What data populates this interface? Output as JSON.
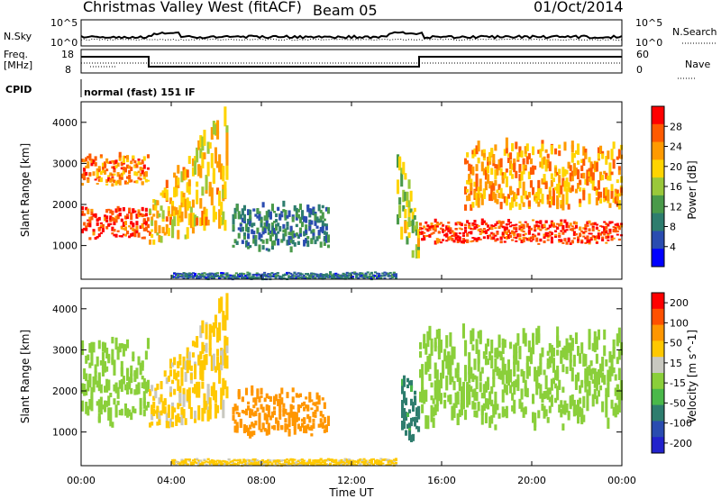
{
  "header": {
    "station": "Christmas Valley West (fitACF)",
    "beam": "Beam 05",
    "date": "01/Oct/2014"
  },
  "noise_panel": {
    "left_label": "N.Sky",
    "left_ticks": [
      "10^5",
      "10^0"
    ],
    "right_label": "N.Search",
    "right_ticks": [
      "10^5",
      "10^0"
    ]
  },
  "freq_panel": {
    "left_label_1": "Freq.",
    "left_label_2": "[MHz]",
    "left_ticks": [
      "18",
      "8"
    ],
    "right_label": "Nave",
    "right_ticks": [
      "60",
      "0"
    ]
  },
  "cpid_panel": {
    "label": "CPID",
    "text": "normal (fast) 151 IF"
  },
  "chart_data": [
    {
      "type": "heatmap",
      "title": "",
      "xlabel": "Time UT",
      "ylabel": "Slant Range [km]",
      "xlim": [
        0,
        24
      ],
      "ylim": [
        180,
        4500
      ],
      "x_ticks": [
        "00:00",
        "04:00",
        "08:00",
        "12:00",
        "16:00",
        "20:00",
        "00:00"
      ],
      "y_ticks": [
        1000,
        2000,
        3000,
        4000
      ],
      "colorbar": {
        "label": "Power [dB]",
        "ticks": [
          4,
          8,
          12,
          16,
          20,
          24,
          28
        ],
        "range": [
          0,
          30
        ]
      },
      "regions": [
        {
          "name": "early ionospheric band",
          "t": [
            0,
            3
          ],
          "range_km": [
            1100,
            1900
          ],
          "value": 28
        },
        {
          "name": "early upper band",
          "t": [
            0,
            3
          ],
          "range_km": [
            2400,
            3200
          ],
          "value": 24
        },
        {
          "name": "rising arcs",
          "t": [
            3,
            6.5
          ],
          "range_km": [
            1000,
            4200
          ],
          "value": 20
        },
        {
          "name": "daytime ground scatter",
          "t": [
            6.7,
            11
          ],
          "range_km": [
            800,
            2000
          ],
          "value": 8
        },
        {
          "name": "sunset band",
          "t": [
            14,
            15
          ],
          "range_km": [
            500,
            3000
          ],
          "value": 16
        },
        {
          "name": "evening lower band",
          "t": [
            15,
            24
          ],
          "range_km": [
            1000,
            1600
          ],
          "value": 28
        },
        {
          "name": "evening upper band",
          "t": [
            17,
            24
          ],
          "range_km": [
            1800,
            3400
          ],
          "value": 22
        },
        {
          "name": "near-range echoes",
          "t": [
            4,
            14
          ],
          "range_km": [
            180,
            350
          ],
          "value": 6
        }
      ]
    },
    {
      "type": "heatmap",
      "title": "",
      "xlabel": "Time UT",
      "ylabel": "Slant Range [km]",
      "xlim": [
        0,
        24
      ],
      "ylim": [
        180,
        4500
      ],
      "x_ticks": [
        "00:00",
        "04:00",
        "08:00",
        "12:00",
        "16:00",
        "20:00",
        "00:00"
      ],
      "y_ticks": [
        1000,
        2000,
        3000,
        4000
      ],
      "colorbar": {
        "label": "Velocity [m s^-1]",
        "ticks": [
          200,
          100,
          50,
          15,
          -15,
          -50,
          -100,
          -200
        ]
      },
      "regions": [
        {
          "name": "early ground scatter",
          "t": [
            0,
            3
          ],
          "range_km": [
            1100,
            3200
          ],
          "value": 0
        },
        {
          "name": "rising arcs",
          "t": [
            3,
            6.5
          ],
          "range_km": [
            1000,
            4200
          ],
          "value": -60
        },
        {
          "name": "daytime receding echoes",
          "t": [
            6.7,
            11
          ],
          "range_km": [
            800,
            2000
          ],
          "value": -120
        },
        {
          "name": "sunset approaching",
          "t": [
            14.2,
            15
          ],
          "range_km": [
            500,
            2600
          ],
          "value": 60
        },
        {
          "name": "evening ground scatter",
          "t": [
            15,
            24
          ],
          "range_km": [
            1000,
            3400
          ],
          "value": 0
        },
        {
          "name": "near-range echoes",
          "t": [
            4,
            14
          ],
          "range_km": [
            180,
            350
          ],
          "value": -60
        }
      ]
    }
  ],
  "colors": {
    "power_scale": [
      "#0000ff",
      "#2a4cb0",
      "#2e7d6e",
      "#4a9a4a",
      "#9ac83a",
      "#ffd400",
      "#ff9a00",
      "#ff5a00",
      "#ff0000"
    ],
    "velocity_scale": [
      "#2222cc",
      "#2a4cb0",
      "#2e7d6e",
      "#4ab84a",
      "#8acf3a",
      "#c8c8c0",
      "#ffc800",
      "#ff9600",
      "#ff5000",
      "#ff0000"
    ]
  }
}
